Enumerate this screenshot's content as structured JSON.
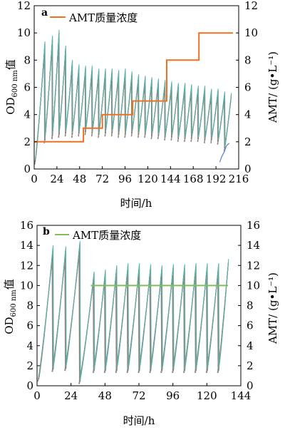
{
  "chart_data": [
    {
      "panel_label": "a",
      "type": "line",
      "xlabel": "时间/h",
      "ylabel_left_main": "OD",
      "ylabel_left_sub": "600 nm",
      "ylabel_left_suffix": "值",
      "ylabel_right": "AMT/ (g•L⁻¹)",
      "xlim": [
        0,
        216
      ],
      "ylim_left": [
        0,
        12
      ],
      "ylim_right": [
        0,
        12
      ],
      "xticks": [
        0,
        24,
        48,
        72,
        96,
        120,
        144,
        168,
        192,
        216
      ],
      "yticks_left": [
        0,
        2,
        4,
        6,
        8,
        10,
        12
      ],
      "yticks_right": [
        0,
        2,
        4,
        6,
        8,
        10,
        12
      ],
      "legend": {
        "label": "AMT质量浓度",
        "color": "#f07020",
        "placement": "top-left"
      },
      "amt_series": {
        "color": "#f07020",
        "x": [
          0,
          52,
          52,
          72,
          72,
          104,
          104,
          140,
          140,
          174,
          174,
          210
        ],
        "y": [
          2,
          2,
          3,
          3,
          4,
          4,
          5,
          5,
          8,
          8,
          10,
          10
        ]
      },
      "od_cycles": {
        "colors": [
          "#5b8ed6",
          "#e0553a",
          "#7fbf5a",
          "#b48cd8",
          "#5c5c5c",
          "#a5a050",
          "#4fb3b8"
        ],
        "cycles": [
          {
            "start": 1,
            "end": 11,
            "v0": 0.5,
            "peak": 8.9
          },
          {
            "start": 11,
            "end": 19,
            "v0": 2.1,
            "peak": 9.3
          },
          {
            "start": 19,
            "end": 26,
            "v0": 2.4,
            "peak": 9.7
          },
          {
            "start": 26,
            "end": 33,
            "v0": 2.5,
            "peak": 8.6
          },
          {
            "start": 33,
            "end": 40,
            "v0": 2.6,
            "peak": 7.6
          },
          {
            "start": 40,
            "end": 47,
            "v0": 2.5,
            "peak": 7.3
          },
          {
            "start": 47,
            "end": 54,
            "v0": 2.6,
            "peak": 7.2
          },
          {
            "start": 54,
            "end": 61,
            "v0": 2.7,
            "peak": 7.2
          },
          {
            "start": 61,
            "end": 68,
            "v0": 2.6,
            "peak": 7.0
          },
          {
            "start": 68,
            "end": 75,
            "v0": 2.5,
            "peak": 7.0
          },
          {
            "start": 75,
            "end": 82,
            "v0": 2.6,
            "peak": 7.0
          },
          {
            "start": 82,
            "end": 89,
            "v0": 2.6,
            "peak": 6.9
          },
          {
            "start": 89,
            "end": 96,
            "v0": 2.5,
            "peak": 7.0
          },
          {
            "start": 96,
            "end": 103,
            "v0": 2.5,
            "peak": 6.8
          },
          {
            "start": 103,
            "end": 110,
            "v0": 2.6,
            "peak": 6.6
          },
          {
            "start": 110,
            "end": 117,
            "v0": 2.5,
            "peak": 6.5
          },
          {
            "start": 117,
            "end": 124,
            "v0": 2.5,
            "peak": 6.4
          },
          {
            "start": 124,
            "end": 131,
            "v0": 2.4,
            "peak": 6.3
          },
          {
            "start": 131,
            "end": 138,
            "v0": 2.4,
            "peak": 6.2
          },
          {
            "start": 138,
            "end": 145,
            "v0": 2.3,
            "peak": 6.1
          },
          {
            "start": 145,
            "end": 152,
            "v0": 2.3,
            "peak": 6.0
          },
          {
            "start": 152,
            "end": 159,
            "v0": 2.2,
            "peak": 6.0
          },
          {
            "start": 159,
            "end": 166,
            "v0": 2.2,
            "peak": 5.9
          },
          {
            "start": 166,
            "end": 173,
            "v0": 2.2,
            "peak": 5.8
          },
          {
            "start": 173,
            "end": 180,
            "v0": 2.2,
            "peak": 5.8
          },
          {
            "start": 180,
            "end": 187,
            "v0": 2.1,
            "peak": 5.6
          },
          {
            "start": 187,
            "end": 194,
            "v0": 2.1,
            "peak": 5.6
          },
          {
            "start": 194,
            "end": 201,
            "v0": 2.0,
            "peak": 5.4
          },
          {
            "start": 201,
            "end": 208,
            "v0": 1.5,
            "peak": 5.3
          }
        ],
        "slow_tail": {
          "x": [
            196,
            198,
            201,
            203,
            206
          ],
          "y": [
            0.5,
            0.9,
            1.3,
            1.7,
            1.9
          ],
          "color": "#5b8ed6"
        }
      }
    },
    {
      "panel_label": "b",
      "type": "line",
      "xlabel": "时间/h",
      "ylabel_left_main": "OD",
      "ylabel_left_sub": "600 nm",
      "ylabel_left_suffix": "值",
      "ylabel_right": "AMT/ (g•L⁻¹)",
      "xlim": [
        0,
        144
      ],
      "ylim_left": [
        0,
        16
      ],
      "ylim_right": [
        0,
        16
      ],
      "xticks": [
        0,
        24,
        48,
        72,
        96,
        120,
        144
      ],
      "yticks_left": [
        0,
        2,
        4,
        6,
        8,
        10,
        12,
        14,
        16
      ],
      "yticks_right": [
        0,
        2,
        4,
        6,
        8,
        10,
        12,
        14,
        16
      ],
      "legend": {
        "label": "AMT质量浓度",
        "color": "#7fbf5a",
        "placement": "top-left"
      },
      "amt_series": {
        "color": "#7fbf5a",
        "x": [
          38,
          135
        ],
        "y": [
          10,
          10
        ]
      },
      "od_cycles": {
        "colors": [
          "#5b8ed6",
          "#e0553a",
          "#7fbf5a",
          "#b48cd8",
          "#5c5c5c",
          "#a5a050",
          "#4fb3b8"
        ],
        "cycles": [
          {
            "start": 1,
            "end": 11,
            "v0": 0.6,
            "peak": 13.3
          },
          {
            "start": 11,
            "end": 20,
            "v0": 1.6,
            "peak": 13.2
          },
          {
            "start": 20,
            "end": 30,
            "v0": 1.7,
            "peak": 13.7
          },
          {
            "start": 30,
            "end": 40,
            "v0": 0.4,
            "peak": 10.8
          },
          {
            "start": 40,
            "end": 48,
            "v0": 1.5,
            "peak": 11.0
          },
          {
            "start": 48,
            "end": 56,
            "v0": 1.5,
            "peak": 11.4
          },
          {
            "start": 56,
            "end": 64,
            "v0": 1.5,
            "peak": 11.6
          },
          {
            "start": 64,
            "end": 72,
            "v0": 1.5,
            "peak": 11.6
          },
          {
            "start": 72,
            "end": 80,
            "v0": 1.5,
            "peak": 11.5
          },
          {
            "start": 80,
            "end": 88,
            "v0": 1.5,
            "peak": 11.4
          },
          {
            "start": 88,
            "end": 96,
            "v0": 1.5,
            "peak": 11.5
          },
          {
            "start": 96,
            "end": 104,
            "v0": 1.5,
            "peak": 11.5
          },
          {
            "start": 104,
            "end": 112,
            "v0": 1.5,
            "peak": 11.6
          },
          {
            "start": 112,
            "end": 120,
            "v0": 1.5,
            "peak": 11.6
          },
          {
            "start": 120,
            "end": 128,
            "v0": 1.5,
            "peak": 11.6
          },
          {
            "start": 128,
            "end": 135,
            "v0": 1.5,
            "peak": 12.0
          }
        ]
      }
    }
  ]
}
